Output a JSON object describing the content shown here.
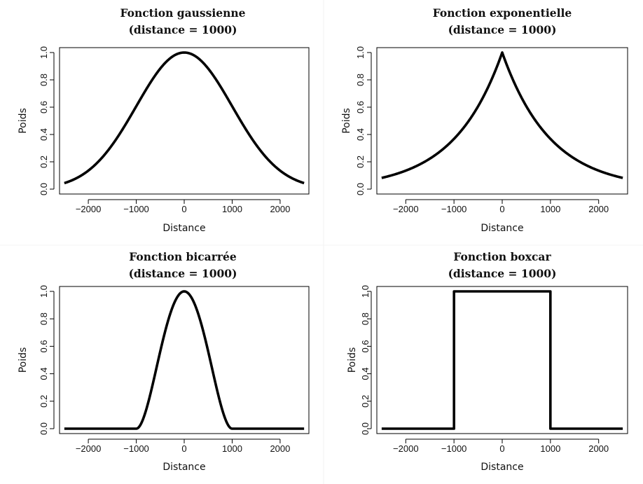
{
  "chart_data": [
    {
      "type": "line",
      "title": "Fonction gaussienne",
      "subtitle": "(distance = 1000)",
      "xlabel": "Distance",
      "ylabel": "Poids",
      "xlim": [
        -2600,
        2600
      ],
      "ylim": [
        0,
        1
      ],
      "xticks": [
        -2000,
        -1000,
        0,
        1000,
        2000
      ],
      "xtick_labels": [
        "−2000",
        "−1000",
        "0",
        "1000",
        "2000"
      ],
      "yticks": [
        0,
        0.2,
        0.4,
        0.6,
        0.8,
        1
      ],
      "ytick_labels": [
        "0.0",
        "0.2",
        "0.4",
        "0.6",
        "0.8",
        "1.0"
      ],
      "grid": false,
      "series": [
        {
          "x": [
            -2500,
            -2250,
            -2000,
            -1750,
            -1500,
            -1250,
            -1000,
            -750,
            -500,
            -250,
            0,
            250,
            500,
            750,
            1000,
            1250,
            1500,
            1750,
            2000,
            2250,
            2500
          ],
          "y": [
            0.044,
            0.08,
            0.135,
            0.216,
            0.325,
            0.458,
            0.607,
            0.755,
            0.882,
            0.969,
            1.0,
            0.969,
            0.882,
            0.755,
            0.607,
            0.458,
            0.325,
            0.216,
            0.135,
            0.08,
            0.044
          ]
        }
      ]
    },
    {
      "type": "line",
      "title": "Fonction exponentielle",
      "subtitle": "(distance = 1000)",
      "xlabel": "Distance",
      "ylabel": "Poids",
      "xlim": [
        -2600,
        2600
      ],
      "ylim": [
        0,
        1
      ],
      "xticks": [
        -2000,
        -1000,
        0,
        1000,
        2000
      ],
      "xtick_labels": [
        "−2000",
        "−1000",
        "0",
        "1000",
        "2000"
      ],
      "yticks": [
        0,
        0.2,
        0.4,
        0.6,
        0.8,
        1
      ],
      "ytick_labels": [
        "0.0",
        "0.2",
        "0.4",
        "0.6",
        "0.8",
        "1.0"
      ],
      "grid": false,
      "series": [
        {
          "x": [
            -2500,
            -2250,
            -2000,
            -1750,
            -1500,
            -1250,
            -1000,
            -750,
            -500,
            -250,
            0,
            250,
            500,
            750,
            1000,
            1250,
            1500,
            1750,
            2000,
            2250,
            2500
          ],
          "y": [
            0.082,
            0.105,
            0.135,
            0.174,
            0.223,
            0.287,
            0.368,
            0.472,
            0.607,
            0.779,
            1.0,
            0.779,
            0.607,
            0.472,
            0.368,
            0.287,
            0.223,
            0.174,
            0.135,
            0.105,
            0.082
          ]
        }
      ]
    },
    {
      "type": "line",
      "title": "Fonction bicarrée",
      "subtitle": "(distance = 1000)",
      "xlabel": "Distance",
      "ylabel": "Poids",
      "xlim": [
        -2600,
        2600
      ],
      "ylim": [
        0,
        1
      ],
      "xticks": [
        -2000,
        -1000,
        0,
        1000,
        2000
      ],
      "xtick_labels": [
        "−2000",
        "−1000",
        "0",
        "1000",
        "2000"
      ],
      "yticks": [
        0,
        0.2,
        0.4,
        0.6,
        0.8,
        1
      ],
      "ytick_labels": [
        "0.0",
        "0.2",
        "0.4",
        "0.6",
        "0.8",
        "1.0"
      ],
      "grid": false,
      "series": [
        {
          "x": [
            -2500,
            -1000,
            -900,
            -800,
            -700,
            -600,
            -500,
            -400,
            -300,
            -200,
            -100,
            0,
            100,
            200,
            300,
            400,
            500,
            600,
            700,
            800,
            900,
            1000,
            2500
          ],
          "y": [
            0,
            0,
            0.036,
            0.13,
            0.26,
            0.41,
            0.563,
            0.706,
            0.828,
            0.922,
            0.98,
            1.0,
            0.98,
            0.922,
            0.828,
            0.706,
            0.563,
            0.41,
            0.26,
            0.13,
            0.036,
            0,
            0
          ]
        }
      ]
    },
    {
      "type": "line",
      "title": "Fonction boxcar",
      "subtitle": "(distance = 1000)",
      "xlabel": "Distance",
      "ylabel": "Poids",
      "xlim": [
        -2600,
        2600
      ],
      "ylim": [
        0,
        1
      ],
      "xticks": [
        -2000,
        -1000,
        0,
        1000,
        2000
      ],
      "xtick_labels": [
        "−2000",
        "−1000",
        "0",
        "1000",
        "2000"
      ],
      "yticks": [
        0,
        0.2,
        0.4,
        0.6,
        0.8,
        1
      ],
      "ytick_labels": [
        "0.0",
        "0.2",
        "0.4",
        "0.6",
        "0.8",
        "1.0"
      ],
      "grid": false,
      "series": [
        {
          "x": [
            -2500,
            -1000,
            -1000,
            1000,
            1000,
            2500
          ],
          "y": [
            0,
            0,
            1,
            1,
            0,
            0
          ]
        }
      ]
    }
  ]
}
